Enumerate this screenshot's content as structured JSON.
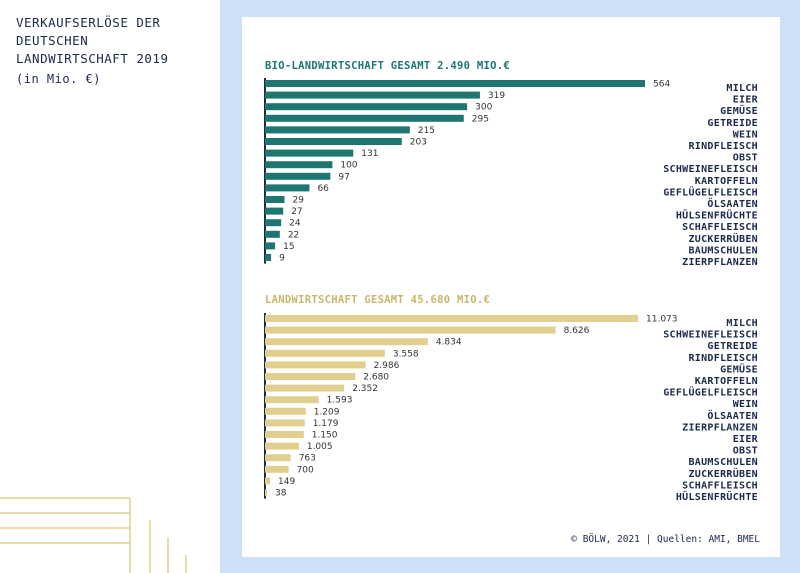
{
  "header": {
    "title": "VERKAUFSERLÖSE DER\nDEUTSCHEN\nLANDWIRTSCHAFT 2019",
    "unit": "(in Mio. €)"
  },
  "credit": "© BÖLW, 2021 | Quellen: AMI, BMEL",
  "colors": {
    "bio": "#1f7670",
    "conv": "#e0cf8e",
    "axis": "#1c2a4a",
    "background": "#cde0f5"
  },
  "chart_data": [
    {
      "type": "bar",
      "orientation": "horizontal",
      "title": "BIO-LANDWIRTSCHAFT GESAMT 2.490 MIO.€",
      "categories": [
        "MILCH",
        "EIER",
        "GEMÜSE",
        "GETREIDE",
        "WEIN",
        "RINDFLEISCH",
        "OBST",
        "SCHWEINEFLEISCH",
        "KARTOFFELN",
        "GEFLÜGELFLEISCH",
        "ÖLSAATEN",
        "HÜLSENFRÜCHTE",
        "SCHAFFLEISCH",
        "ZUCKERRÜBEN",
        "BAUMSCHULEN",
        "ZIERPFLANZEN"
      ],
      "values": [
        564,
        319,
        300,
        295,
        215,
        203,
        131,
        100,
        97,
        66,
        29,
        27,
        24,
        22,
        15,
        9
      ],
      "labels": [
        "564",
        "319",
        "300",
        "295",
        "215",
        "203",
        "131",
        "100",
        "97",
        "66",
        "29",
        "27",
        "24",
        "22",
        "15",
        "9"
      ],
      "xlim": [
        0,
        564
      ]
    },
    {
      "type": "bar",
      "orientation": "horizontal",
      "title": "LANDWIRTSCHAFT GESAMT 45.680 MIO.€",
      "categories": [
        "MILCH",
        "SCHWEINEFLEISCH",
        "GETREIDE",
        "RINDFLEISCH",
        "GEMÜSE",
        "KARTOFFELN",
        "GEFLÜGELFLEISCH",
        "WEIN",
        "ÖLSAATEN",
        "ZIERPFLANZEN",
        "EIER",
        "OBST",
        "BAUMSCHULEN",
        "ZUCKERRÜBEN",
        "SCHAFFLEISCH",
        "HÜLSENFRÜCHTE"
      ],
      "values": [
        11073,
        8626,
        4834,
        3558,
        2986,
        2680,
        2352,
        1593,
        1209,
        1179,
        1150,
        1005,
        763,
        700,
        149,
        38
      ],
      "labels": [
        "11.073",
        "8.626",
        "4.834",
        "3.558",
        "2.986",
        "2.680",
        "2.352",
        "1.593",
        "1.209",
        "1.179",
        "1.150",
        "1.005",
        "763",
        "700",
        "149",
        "38"
      ],
      "xlim": [
        0,
        11073
      ]
    }
  ]
}
